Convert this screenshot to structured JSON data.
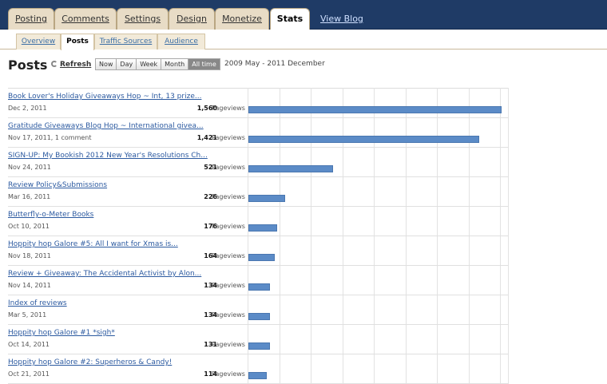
{
  "nav": {
    "tabs": [
      {
        "label": "Posting"
      },
      {
        "label": "Comments"
      },
      {
        "label": "Settings"
      },
      {
        "label": "Design"
      },
      {
        "label": "Monetize"
      },
      {
        "label": "Stats"
      }
    ],
    "active_tab": "Stats",
    "view_blog": "View Blog"
  },
  "subnav": {
    "tabs": [
      {
        "label": "Overview"
      },
      {
        "label": "Posts"
      },
      {
        "label": "Traffic Sources"
      },
      {
        "label": "Audience"
      }
    ],
    "active_tab": "Posts"
  },
  "header": {
    "title": "Posts",
    "refresh": "Refresh",
    "ranges": [
      "Now",
      "Day",
      "Week",
      "Month",
      "All time"
    ],
    "active_range": "All time",
    "period": "2009 May - 2011 December"
  },
  "colors": {
    "nav_bg": "#1f3b66",
    "bar": "#5b8bc7",
    "link": "#2c5aa0"
  },
  "posts": [
    {
      "title": "Book Lover's Holiday Giveaways Hop ~ Int, 13 prize...",
      "meta": "Dec 2, 2011",
      "views": 1560,
      "views_text": "1,560",
      "views_label": "Pageviews"
    },
    {
      "title": "Gratitude Giveaways Blog Hop ~ International givea...",
      "meta": "Nov 17, 2011, 1 comment",
      "views": 1421,
      "views_text": "1,421",
      "views_label": "Pageviews"
    },
    {
      "title": "SIGN-UP: My Bookish 2012 New Year's Resolutions Ch...",
      "meta": "Nov 24, 2011",
      "views": 521,
      "views_text": "521",
      "views_label": "Pageviews"
    },
    {
      "title": "Review Policy&Submissions",
      "meta": "Mar 16, 2011",
      "views": 226,
      "views_text": "226",
      "views_label": "Pageviews"
    },
    {
      "title": "Butterfly-o-Meter Books",
      "meta": "Oct 10, 2011",
      "views": 176,
      "views_text": "176",
      "views_label": "Pageviews"
    },
    {
      "title": "Hoppity hop Galore #5: All I want for Xmas is...",
      "meta": "Nov 18, 2011",
      "views": 164,
      "views_text": "164",
      "views_label": "Pageviews"
    },
    {
      "title": "Review + Giveaway: The Accidental Activist by Alon...",
      "meta": "Nov 14, 2011",
      "views": 134,
      "views_text": "134",
      "views_label": "Pageviews"
    },
    {
      "title": "Index of reviews",
      "meta": "Mar 5, 2011",
      "views": 134,
      "views_text": "134",
      "views_label": "Pageviews"
    },
    {
      "title": "Hoppity hop Galore #1 *sigh*",
      "meta": "Oct 14, 2011",
      "views": 131,
      "views_text": "131",
      "views_label": "Pageviews"
    },
    {
      "title": "Hoppity hop Galore #2: Superheros & Candy!",
      "meta": "Oct 21, 2011",
      "views": 114,
      "views_text": "114",
      "views_label": "Pageviews"
    }
  ]
}
